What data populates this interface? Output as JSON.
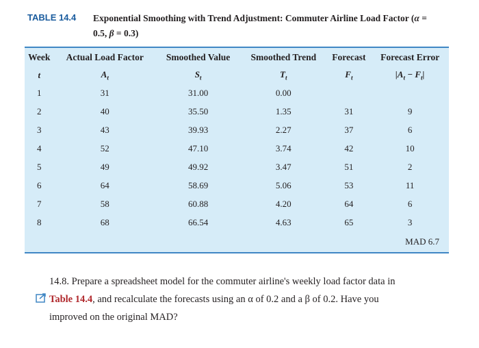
{
  "caption": {
    "label": "TABLE 14.4",
    "title_lines": [
      [
        "Exponential Smoothing with Trend Adjustment: Commuter Airline Load Factor (",
        "α",
        " ="
      ],
      [
        "0.5, ",
        "β",
        " = 0.3)"
      ]
    ]
  },
  "table": {
    "header": [
      "Week",
      "Actual Load Factor",
      "Smoothed Value",
      "Smoothed Trend",
      "Forecast",
      "Forecast Error"
    ],
    "subheader": [
      [
        "t"
      ],
      [
        "A",
        "t"
      ],
      [
        "S",
        "t"
      ],
      [
        "T",
        "t"
      ],
      [
        "F",
        "t"
      ],
      [
        "|A",
        "t",
        " − F",
        "t",
        "|"
      ]
    ],
    "rows": [
      [
        "1",
        "31",
        "31.00",
        "0.00",
        null,
        null
      ],
      [
        "2",
        "40",
        "35.50",
        "1.35",
        "31",
        "9"
      ],
      [
        "3",
        "43",
        "39.93",
        "2.27",
        "37",
        "6"
      ],
      [
        "4",
        "52",
        "47.10",
        "3.74",
        "42",
        "10"
      ],
      [
        "5",
        "49",
        "49.92",
        "3.47",
        "51",
        "2"
      ],
      [
        "6",
        "64",
        "58.69",
        "5.06",
        "53",
        "11"
      ],
      [
        "7",
        "58",
        "60.88",
        "4.20",
        "64",
        "6"
      ],
      [
        "8",
        "68",
        "66.54",
        "4.63",
        "65",
        "3"
      ]
    ],
    "footer": "MAD 6.7"
  },
  "problem": {
    "lines": [
      [
        "14.8. Prepare a spreadsheet model for the commuter airline's weekly load factor data in"
      ],
      [
        "Table 14.4",
        ", and recalculate the forecasts using an ",
        "α",
        " of 0.2 and a ",
        "β",
        " of 0.2. Have you"
      ],
      [
        "improved on the original MAD?"
      ]
    ]
  }
}
